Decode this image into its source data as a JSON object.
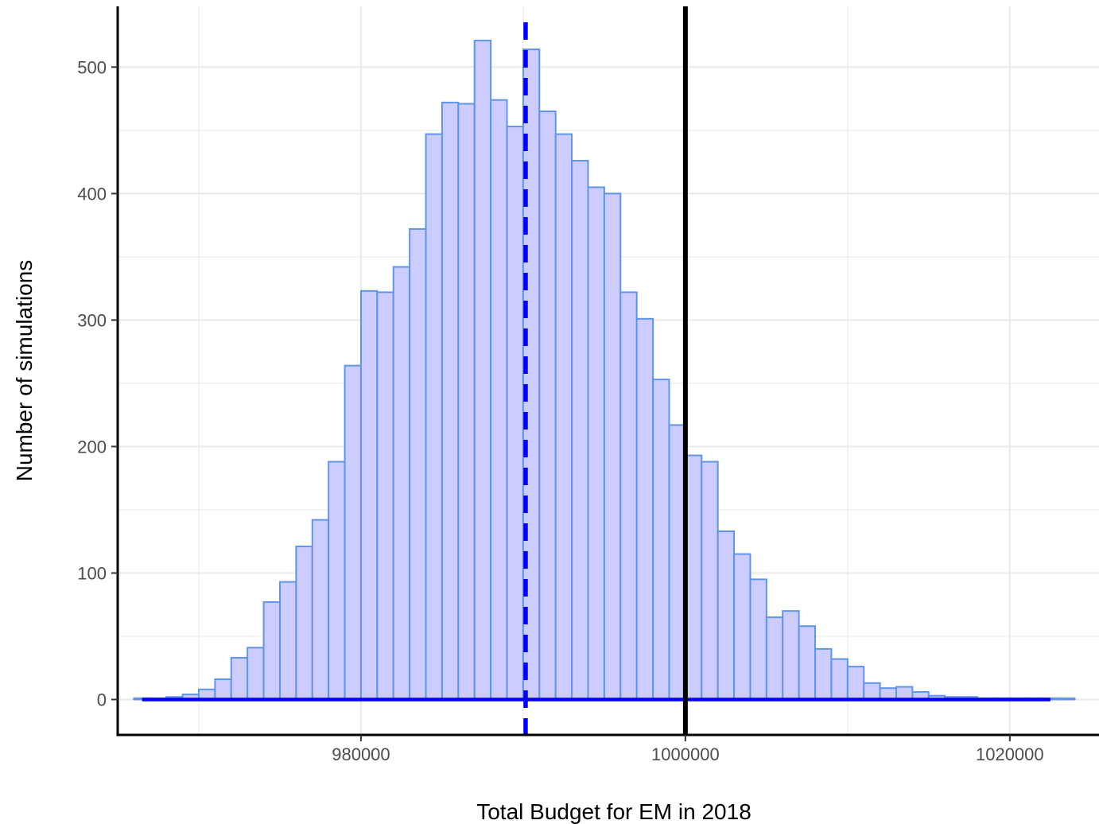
{
  "chart_data": {
    "type": "bar",
    "title": "",
    "xlabel": "Total Budget for EM in 2018",
    "ylabel": "Number of simulations",
    "bin_width": 1000,
    "bin_starts": [
      966000,
      967000,
      968000,
      969000,
      970000,
      971000,
      972000,
      973000,
      974000,
      975000,
      976000,
      977000,
      978000,
      979000,
      980000,
      981000,
      982000,
      983000,
      984000,
      985000,
      986000,
      987000,
      988000,
      989000,
      990000,
      991000,
      992000,
      993000,
      994000,
      995000,
      996000,
      997000,
      998000,
      999000,
      1000000,
      1001000,
      1002000,
      1003000,
      1004000,
      1005000,
      1006000,
      1007000,
      1008000,
      1009000,
      1010000,
      1011000,
      1012000,
      1013000,
      1014000,
      1015000,
      1016000,
      1017000,
      1018000,
      1019000,
      1020000,
      1021000,
      1022000,
      1023000
    ],
    "values": [
      1,
      1,
      2,
      4,
      8,
      16,
      33,
      41,
      77,
      93,
      121,
      142,
      188,
      264,
      323,
      322,
      342,
      372,
      447,
      472,
      471,
      521,
      474,
      453,
      514,
      465,
      447,
      426,
      405,
      400,
      322,
      301,
      253,
      217,
      193,
      188,
      133,
      115,
      95,
      65,
      70,
      58,
      40,
      32,
      26,
      13,
      9,
      10,
      6,
      3,
      2,
      2,
      1,
      1,
      1,
      1,
      1,
      1
    ],
    "xlim": [
      965000,
      1025500
    ],
    "ylim": [
      -28,
      548
    ],
    "x_ticks": [
      980000,
      1000000,
      1020000
    ],
    "x_tick_labels": [
      "980000",
      "1000000",
      "1020000"
    ],
    "y_ticks": [
      0,
      100,
      200,
      300,
      400,
      500
    ],
    "y_tick_labels": [
      "0",
      "100",
      "200",
      "300",
      "400",
      "500"
    ],
    "density_curve": {
      "x_start": 966500,
      "x_end": 1022500,
      "y": 0
    },
    "reference_lines": [
      {
        "x": 990150,
        "style": "dashed",
        "color": "#0000ee"
      },
      {
        "x": 1000000,
        "style": "solid",
        "color": "#000000"
      }
    ],
    "grid": true,
    "legend": "none",
    "colors": {
      "bar_fill": "#ccccff",
      "bar_stroke": "#5f94e8",
      "curve": "#0000ee",
      "grid": "#ebebeb",
      "panel_border": "#000000"
    }
  }
}
